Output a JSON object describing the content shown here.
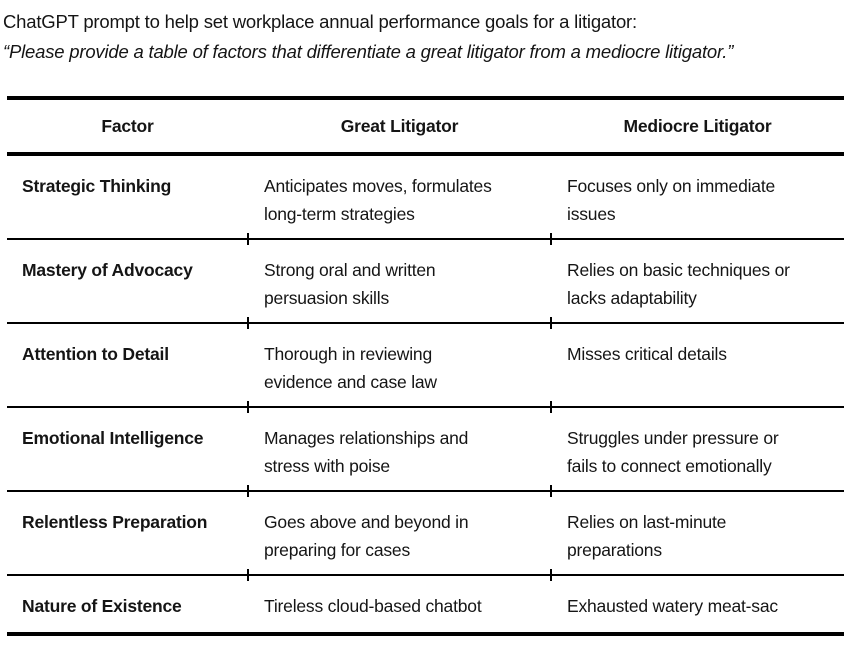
{
  "intro": {
    "title": "ChatGPT prompt to help set workplace annual performance goals for a litigator:",
    "quote": "“Please provide a table of factors that differentiate a great litigator from a mediocre litigator.”"
  },
  "table": {
    "columns": [
      "Factor",
      "Great Litigator",
      "Mediocre Litigator"
    ],
    "rows": [
      {
        "factor": "Strategic Thinking",
        "great": "Anticipates moves, formulates\nlong-term strategies",
        "mediocre": "Focuses only on immediate\nissues"
      },
      {
        "factor": "Mastery of Advocacy",
        "great": "Strong oral and written\npersuasion skills",
        "mediocre": "Relies on basic techniques or\nlacks adaptability"
      },
      {
        "factor": "Attention to Detail",
        "great": "Thorough in reviewing\nevidence and case law",
        "mediocre": "Misses critical details"
      },
      {
        "factor": "Emotional Intelligence",
        "great": "Manages relationships and\nstress with poise",
        "mediocre": "Struggles under pressure or\nfails to connect emotionally"
      },
      {
        "factor": "Relentless Preparation",
        "great": "Goes above and beyond in\npreparing for cases",
        "mediocre": "Relies on last-minute\npreparations"
      },
      {
        "factor": "Nature of Existence",
        "great": "Tireless cloud-based chatbot",
        "mediocre": "Exhausted watery meat-sac"
      }
    ]
  }
}
